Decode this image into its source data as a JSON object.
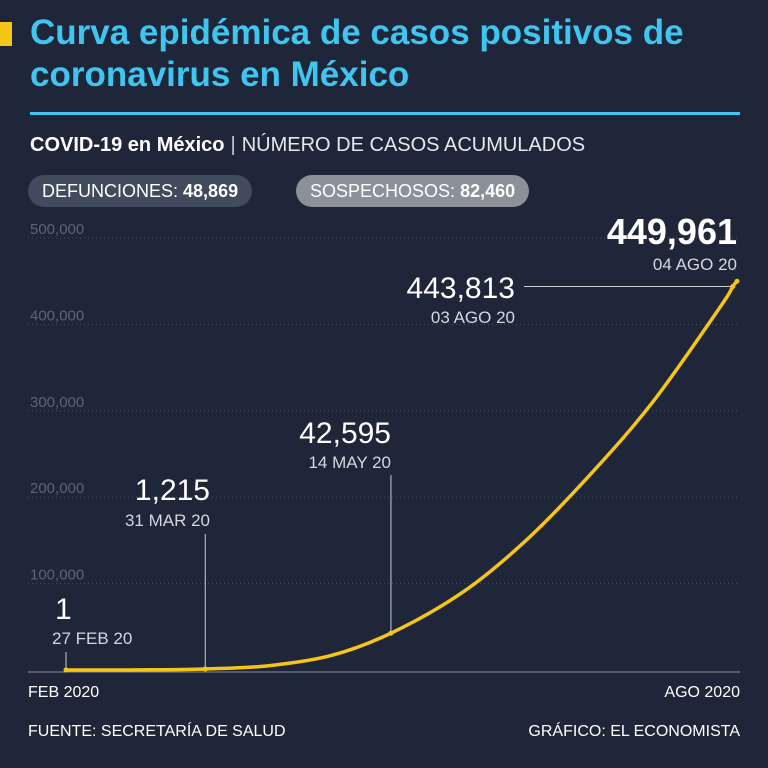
{
  "title": "Curva epidémica de casos positivos de coronavirus en México",
  "subtitle": {
    "bold": "COVID-19 en México",
    "separator": "|",
    "light": "NÚMERO DE CASOS ACUMULADOS"
  },
  "pills": {
    "defunciones": {
      "label": "DEFUNCIONES:",
      "value": "48,869"
    },
    "sospechosos": {
      "label": "SOSPECHOSOS:",
      "value": "82,460"
    }
  },
  "footer": {
    "source": "FUENTE: SECRETARÍA DE SALUD",
    "credit": "GRÁFICO: EL ECONOMISTA"
  },
  "colors": {
    "background": "#1f2639",
    "title": "#3ec6f1",
    "line": "#f5c518",
    "gridline": "#4a5266",
    "tick_text": "#5d6478"
  },
  "chart_data": {
    "type": "line",
    "title": "",
    "xlabel": "",
    "ylabel": "",
    "x_tick_labels": [
      "FEB 2020",
      "AGO 2020"
    ],
    "x_range": [
      "2020-02-27",
      "2020-08-04"
    ],
    "ylim": [
      0,
      500000
    ],
    "y_ticks": [
      100000,
      200000,
      300000,
      400000,
      500000
    ],
    "y_tick_labels": [
      "100,000",
      "200,000",
      "300,000",
      "400,000",
      "500,000"
    ],
    "grid": true,
    "series": [
      {
        "x": [
          "2020-02-27",
          "2020-03-15",
          "2020-03-31",
          "2020-04-15",
          "2020-04-30",
          "2020-05-14",
          "2020-05-31",
          "2020-06-15",
          "2020-06-30",
          "2020-07-15",
          "2020-07-31",
          "2020-08-03",
          "2020-08-04"
        ],
        "y": [
          1,
          100,
          1215,
          5000,
          17000,
          42595,
          90000,
          150000,
          225000,
          310000,
          420000,
          443813,
          449961
        ]
      }
    ],
    "annotations": [
      {
        "x": "2020-02-27",
        "value": "1",
        "date": "27 FEB 20"
      },
      {
        "x": "2020-03-31",
        "value": "1,215",
        "date": "31 MAR 20"
      },
      {
        "x": "2020-05-14",
        "value": "42,595",
        "date": "14 MAY 20"
      },
      {
        "x": "2020-08-03",
        "value": "443,813",
        "date": "03 AGO 20"
      },
      {
        "x": "2020-08-04",
        "value": "449,961",
        "date": "04 AGO 20"
      }
    ]
  }
}
